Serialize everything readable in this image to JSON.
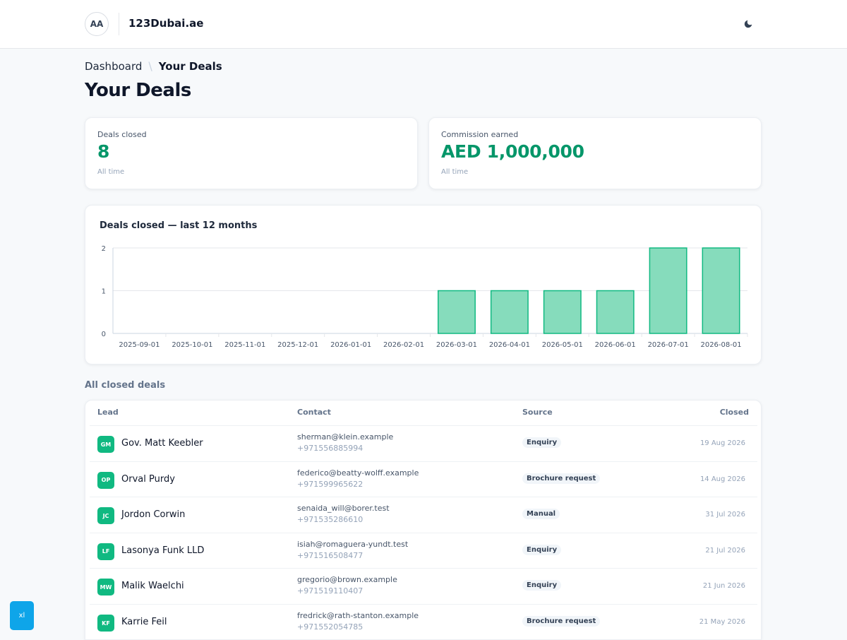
{
  "header": {
    "avatar_initials": "AA",
    "brand": "123Dubai.ae",
    "theme_icon": "moon-icon"
  },
  "breadcrumb": {
    "parent": "Dashboard",
    "separator": "\\",
    "current": "Your Deals"
  },
  "page_title": "Your Deals",
  "stats": {
    "deals_closed": {
      "label": "Deals closed",
      "value": "8",
      "sub": "All time"
    },
    "commission": {
      "label": "Commission earned",
      "value": "AED 1,000,000",
      "sub": "All time"
    }
  },
  "colors": {
    "accent": "#059669",
    "bar_fill": "#86dcbc",
    "bar_stroke": "#10b981",
    "badge": "#0ea5e9"
  },
  "chart_data": {
    "type": "bar",
    "title": "Deals closed — last 12 months",
    "categories": [
      "2025-09-01",
      "2025-10-01",
      "2025-11-01",
      "2025-12-01",
      "2026-01-01",
      "2026-02-01",
      "2026-03-01",
      "2026-04-01",
      "2026-05-01",
      "2026-06-01",
      "2026-07-01",
      "2026-08-01"
    ],
    "values": [
      0,
      0,
      0,
      0,
      0,
      0,
      1,
      1,
      1,
      1,
      2,
      2
    ],
    "ylim": [
      0,
      2
    ],
    "yticks": [
      "0",
      "1",
      "2"
    ],
    "xlabel": "",
    "ylabel": "",
    "grid": true,
    "legend": "none"
  },
  "deals_section": {
    "title": "All closed deals",
    "columns": {
      "lead": "Lead",
      "contact": "Contact",
      "source": "Source",
      "closed": "Closed"
    },
    "rows": [
      {
        "initials": "GM",
        "lead": "Gov. Matt Keebler",
        "email": "sherman@klein.example",
        "phone": "+971556885994",
        "source": "Enquiry",
        "closed": "19 Aug 2026"
      },
      {
        "initials": "OP",
        "lead": "Orval Purdy",
        "email": "federico@beatty-wolff.example",
        "phone": "+971599965622",
        "source": "Brochure request",
        "closed": "14 Aug 2026"
      },
      {
        "initials": "JC",
        "lead": "Jordon Corwin",
        "email": "senaida_will@borer.test",
        "phone": "+971535286610",
        "source": "Manual",
        "closed": "31 Jul 2026"
      },
      {
        "initials": "LF",
        "lead": "Lasonya Funk LLD",
        "email": "isiah@romaguera-yundt.test",
        "phone": "+971516508477",
        "source": "Enquiry",
        "closed": "21 Jul 2026"
      },
      {
        "initials": "MW",
        "lead": "Malik Waelchi",
        "email": "gregorio@brown.example",
        "phone": "+971519110407",
        "source": "Enquiry",
        "closed": "21 Jun 2026"
      },
      {
        "initials": "KF",
        "lead": "Karrie Feil",
        "email": "fredrick@rath-stanton.example",
        "phone": "+971552054785",
        "source": "Brochure request",
        "closed": "21 May 2026"
      }
    ]
  },
  "debug_badge": "xl"
}
